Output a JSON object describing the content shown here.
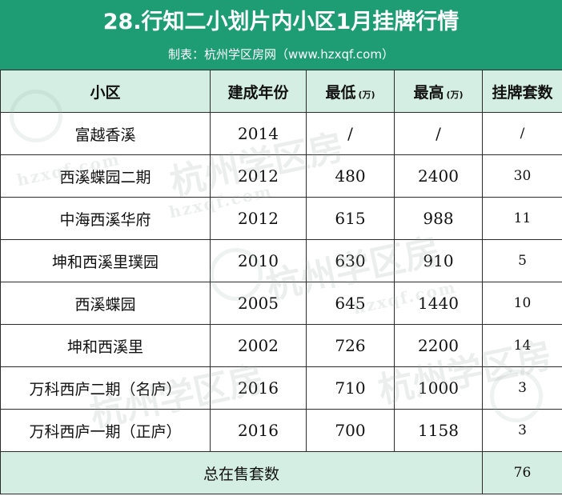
{
  "title": "28.行知二小划片内小区1月挂牌行情",
  "subtitle": "制表：杭州学区房网（www.hzxqf.com）",
  "headers": {
    "community": "小区",
    "year": "建成年份",
    "min": "最低",
    "min_unit": "(万)",
    "max": "最高",
    "max_unit": "(万)",
    "count": "挂牌套数"
  },
  "rows": [
    {
      "community": "富越香溪",
      "year": "2014",
      "min": "/",
      "max": "/",
      "count": "/"
    },
    {
      "community": "西溪蝶园二期",
      "year": "2012",
      "min": "480",
      "max": "2400",
      "count": "30"
    },
    {
      "community": "中海西溪华府",
      "year": "2012",
      "min": "615",
      "max": "988",
      "count": "11"
    },
    {
      "community": "坤和西溪里璞园",
      "year": "2010",
      "min": "630",
      "max": "910",
      "count": "5"
    },
    {
      "community": "西溪蝶园",
      "year": "2005",
      "min": "645",
      "max": "1440",
      "count": "10"
    },
    {
      "community": "坤和西溪里",
      "year": "2002",
      "min": "726",
      "max": "2200",
      "count": "14"
    },
    {
      "community": "万科西庐二期（名庐）",
      "year": "2016",
      "min": "710",
      "max": "1000",
      "count": "3"
    },
    {
      "community": "万科西庐一期（正庐）",
      "year": "2016",
      "min": "700",
      "max": "1158",
      "count": "3"
    }
  ],
  "total": {
    "label": "总在售套数",
    "count": "76"
  },
  "watermark": {
    "text_cn": "杭州学区房",
    "text_en": "hzxqf.com"
  },
  "colors": {
    "header_green": "#1e9c73",
    "light_green": "#d5eee3"
  }
}
